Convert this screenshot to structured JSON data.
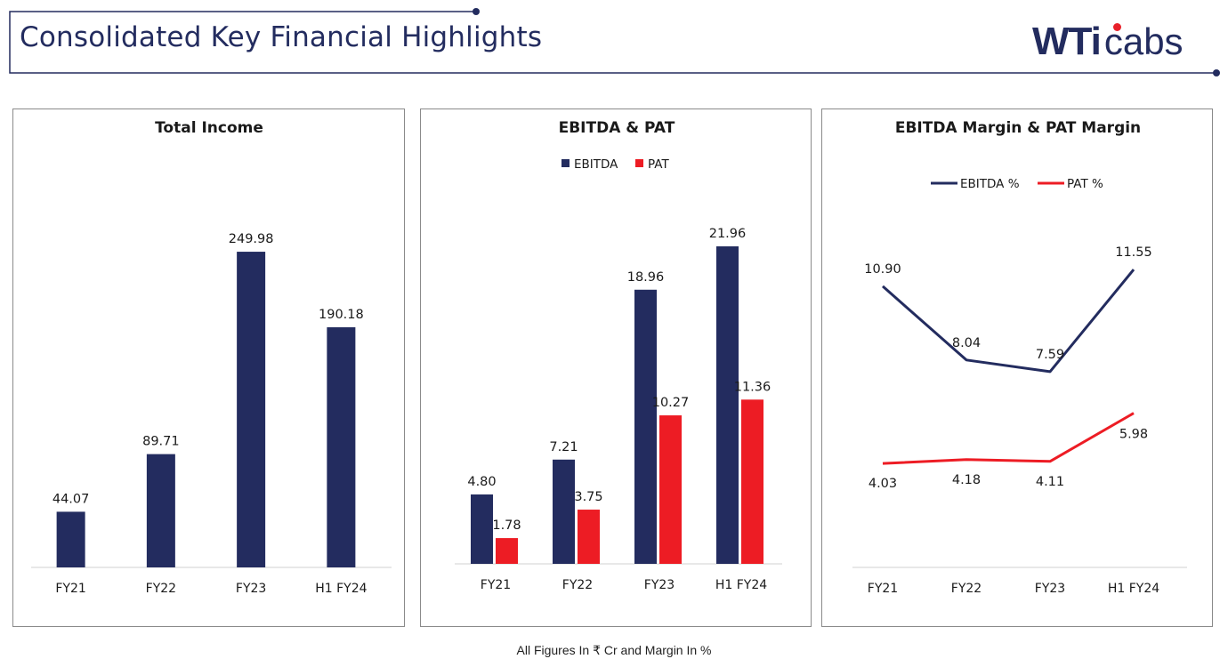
{
  "header": {
    "title": "Consolidated Key Financial Highlights",
    "logo_text_bold": "WTi",
    "logo_text_light": "cabs",
    "accent_color": "#232c5f",
    "logo_dot_color": "#e8212a"
  },
  "footnote": "All Figures In ₹ Cr and Margin In %",
  "colors": {
    "navy": "#232c5f",
    "red": "#ed1c24"
  },
  "chart_data": [
    {
      "type": "bar",
      "title": "Total Income",
      "categories": [
        "FY21",
        "FY22",
        "FY23",
        "H1 FY24"
      ],
      "series": [
        {
          "name": "Total Income",
          "values": [
            44.07,
            89.71,
            249.98,
            190.18
          ],
          "labels": [
            "44.07",
            "89.71",
            "249.98",
            "190.18"
          ]
        }
      ],
      "ylim": [
        0,
        270
      ],
      "grid": false,
      "legend": "none"
    },
    {
      "type": "bar",
      "title": "EBITDA & PAT",
      "categories": [
        "FY21",
        "FY22",
        "FY23",
        "H1 FY24"
      ],
      "series": [
        {
          "name": "EBITDA",
          "values": [
            4.8,
            7.21,
            18.96,
            21.96
          ],
          "labels": [
            "4.80",
            "7.21",
            "18.96",
            "21.96"
          ]
        },
        {
          "name": "PAT",
          "values": [
            1.78,
            3.75,
            10.27,
            11.36
          ],
          "labels": [
            "1.78",
            "3.75",
            "10.27",
            "11.36"
          ]
        }
      ],
      "ylim": [
        0,
        24.5
      ],
      "grid": false,
      "legend": "top"
    },
    {
      "type": "line",
      "title": "EBITDA Margin & PAT Margin",
      "categories": [
        "FY21",
        "FY22",
        "FY23",
        "H1 FY24"
      ],
      "series": [
        {
          "name": "EBITDA %",
          "values": [
            10.9,
            8.04,
            7.59,
            11.55
          ],
          "labels": [
            "10.90",
            "8.04",
            "7.59",
            "11.55"
          ]
        },
        {
          "name": "PAT %",
          "values": [
            4.03,
            4.18,
            4.11,
            5.98
          ],
          "labels": [
            "4.03",
            "4.18",
            "4.11",
            "5.98"
          ]
        }
      ],
      "ylim": [
        0,
        17
      ],
      "grid": false,
      "legend": "top"
    }
  ]
}
